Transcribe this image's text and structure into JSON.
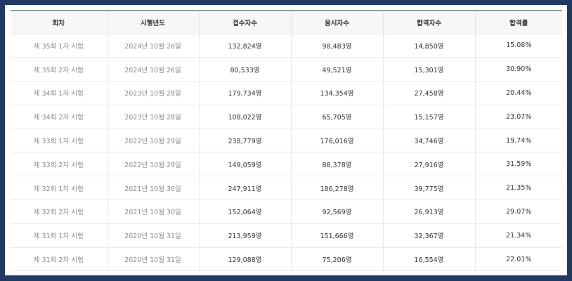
{
  "table": {
    "headers": [
      "회차",
      "시행년도",
      "접수자수",
      "응시자수",
      "합격자수",
      "합격률"
    ],
    "rows": [
      [
        "제 35회 1차 시험",
        "2024년 10월 26일",
        "132,824명",
        "98,483명",
        "14,850명",
        "15.08%"
      ],
      [
        "제 35회 2차 시험",
        "2024년 10월 26일",
        "80,533명",
        "49,521명",
        "15,301명",
        "30.90%"
      ],
      [
        "제 34회 1차 시험",
        "2023년 10월 28일",
        "179,734명",
        "134,354명",
        "27,458명",
        "20.44%"
      ],
      [
        "제 34회 2차 시험",
        "2023년 10월 28일",
        "108,022명",
        "65,705명",
        "15,157명",
        "23.07%"
      ],
      [
        "제 33회 1차 시험",
        "2022년 10월 29일",
        "238,779명",
        "176,016명",
        "34,746명",
        "19.74%"
      ],
      [
        "제 33회 2차 시험",
        "2022년 10월 29일",
        "149,059명",
        "88,378명",
        "27,916명",
        "31.59%"
      ],
      [
        "제 32회 1차 시험",
        "2021년 10월 30일",
        "247,911명",
        "186,278명",
        "39,775명",
        "21.35%"
      ],
      [
        "제 32회 2차 시험",
        "2021년 10월 30일",
        "152,064명",
        "92,569명",
        "26,913명",
        "29.07%"
      ],
      [
        "제 31회 1차 시험",
        "2020년 10월 31일",
        "213,959명",
        "151,666명",
        "32,367명",
        "21.34%"
      ],
      [
        "제 31회 2차 시험",
        "2020년 10월 31일",
        "129,088명",
        "75,206명",
        "16,554명",
        "22.01%"
      ]
    ]
  }
}
